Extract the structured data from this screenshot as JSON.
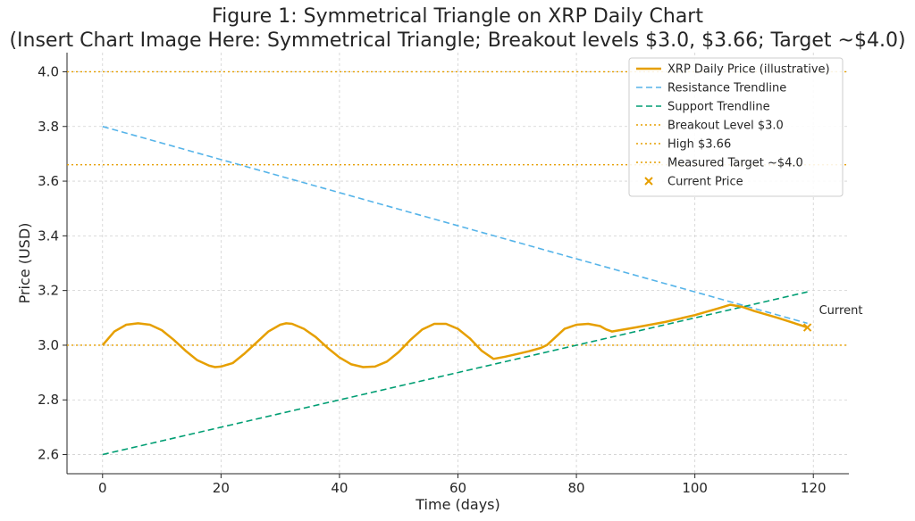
{
  "chart_data": {
    "type": "line",
    "title": "Figure 1: Symmetrical Triangle on XRP Daily Chart",
    "subtitle": "(Insert Chart Image Here: Symmetrical Triangle; Breakout levels $3.0, $3.66; Target ~$4.0)",
    "xlabel": "Time (days)",
    "ylabel": "Price (USD)",
    "xlim": [
      -6,
      126
    ],
    "ylim": [
      2.53,
      4.07
    ],
    "xticks": [
      0,
      20,
      40,
      60,
      80,
      100,
      120
    ],
    "yticks": [
      2.6,
      2.8,
      3.0,
      3.2,
      3.4,
      3.6,
      3.8,
      4.0
    ],
    "grid": true,
    "legend_position": "top-right",
    "series": [
      {
        "name": "XRP Daily Price (illustrative)",
        "style": "solid",
        "color": "#E69F00",
        "x": [
          0,
          2,
          4,
          6,
          8,
          10,
          12,
          14,
          16,
          18,
          19,
          20,
          22,
          24,
          26,
          28,
          30,
          31,
          32,
          34,
          36,
          38,
          40,
          42,
          44,
          46,
          48,
          50,
          52,
          54,
          56,
          58,
          60,
          62,
          64,
          66,
          68,
          70,
          72,
          74,
          75,
          76,
          78,
          80,
          82,
          84,
          85,
          86,
          90,
          95,
          100,
          104,
          106,
          108,
          110,
          114,
          119
        ],
        "y": [
          3.0,
          3.05,
          3.075,
          3.08,
          3.075,
          3.055,
          3.02,
          2.98,
          2.945,
          2.925,
          2.92,
          2.922,
          2.935,
          2.97,
          3.01,
          3.05,
          3.075,
          3.08,
          3.078,
          3.06,
          3.03,
          2.99,
          2.955,
          2.93,
          2.92,
          2.922,
          2.94,
          2.975,
          3.02,
          3.058,
          3.078,
          3.078,
          3.06,
          3.025,
          2.98,
          2.95,
          2.958,
          2.968,
          2.978,
          2.99,
          3.0,
          3.02,
          3.06,
          3.075,
          3.078,
          3.07,
          3.058,
          3.05,
          3.065,
          3.085,
          3.11,
          3.135,
          3.148,
          3.14,
          3.125,
          3.1,
          3.065
        ]
      },
      {
        "name": "Resistance Trendline",
        "style": "dashed",
        "color": "#56B4E9",
        "x": [
          0,
          119
        ],
        "y": [
          3.8,
          3.08
        ]
      },
      {
        "name": "Support Trendline",
        "style": "dashed",
        "color": "#009E73",
        "x": [
          0,
          119
        ],
        "y": [
          2.6,
          3.195
        ]
      }
    ],
    "hlines": [
      {
        "name": "Breakout Level $3.0",
        "y": 3.0,
        "color": "#E69F00",
        "style": "dotted"
      },
      {
        "name": "High $3.66",
        "y": 3.66,
        "color": "#E69F00",
        "style": "dotted"
      },
      {
        "name": "Measured Target ~$4.0",
        "y": 4.0,
        "color": "#E69F00",
        "style": "dotted"
      }
    ],
    "markers": [
      {
        "name": "Current Price",
        "x": 119,
        "y": 3.065,
        "marker": "x",
        "color": "#E69F00"
      }
    ],
    "annotations": [
      {
        "text": "Current",
        "x": 119,
        "y": 3.065
      }
    ]
  }
}
